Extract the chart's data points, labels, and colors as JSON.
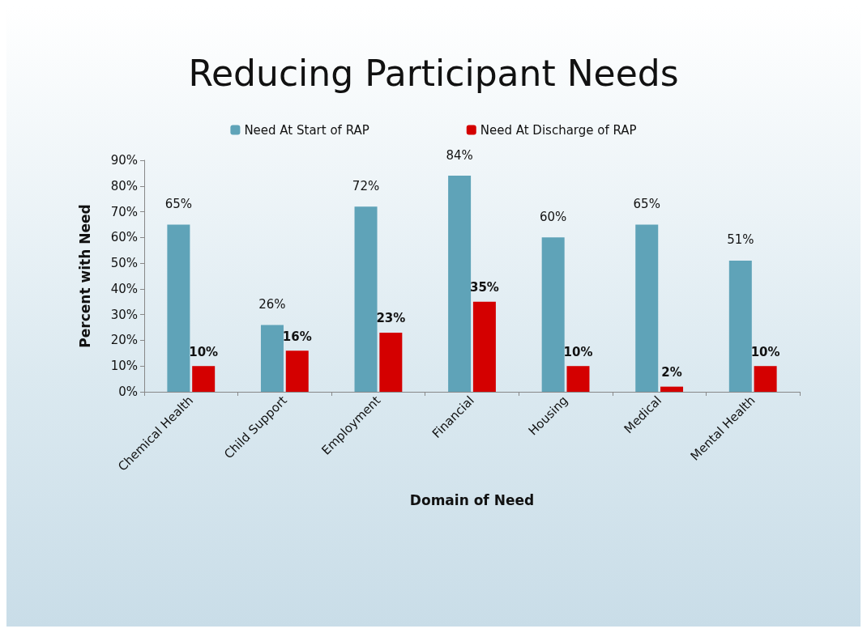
{
  "chart_data": {
    "type": "bar",
    "title": "Reducing Participant Needs",
    "xlabel": "Domain of Need",
    "ylabel": "Percent with Need",
    "categories": [
      "Chemical Health",
      "Child Support",
      "Employment",
      "Financial",
      "Housing",
      "Medical",
      "Mental Health"
    ],
    "series": [
      {
        "name": "Need At Start of RAP",
        "color": "#5fa3b8",
        "values": [
          65,
          26,
          72,
          84,
          60,
          65,
          51
        ],
        "value_labels": [
          "65%",
          "26%",
          "72%",
          "84%",
          "60%",
          "65%",
          "51%"
        ]
      },
      {
        "name": "Need At Discharge of RAP",
        "color": "#d40000",
        "values": [
          10,
          16,
          23,
          35,
          10,
          2,
          10
        ],
        "value_labels": [
          "10%",
          "16%",
          "23%",
          "35%",
          "10%",
          "2%",
          "10%"
        ]
      }
    ],
    "ylim": [
      0,
      90
    ],
    "yticks": [
      {
        "value": 0,
        "label": "0%"
      },
      {
        "value": 10,
        "label": "10%"
      },
      {
        "value": 20,
        "label": "20%"
      },
      {
        "value": 30,
        "label": "30%"
      },
      {
        "value": 40,
        "label": "40%"
      },
      {
        "value": 50,
        "label": "50%"
      },
      {
        "value": 60,
        "label": "60%"
      },
      {
        "value": 70,
        "label": "70%"
      },
      {
        "value": 80,
        "label": "80%"
      },
      {
        "value": 90,
        "label": "90%"
      }
    ],
    "grid": false,
    "legend": "top"
  }
}
